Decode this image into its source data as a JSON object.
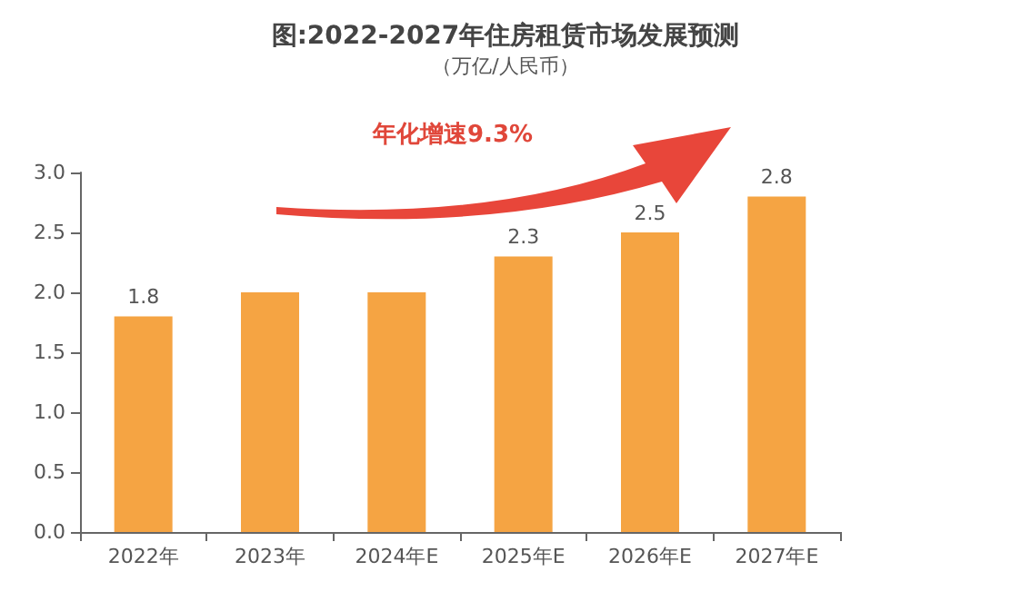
{
  "chart_data": {
    "type": "bar",
    "title": "图:2022-2027年住房租赁市场发展预测",
    "subtitle": "（万亿/人民币）",
    "annotations": [
      "年化增速9.3%"
    ],
    "categories": [
      "2022年",
      "2023年",
      "2024年E",
      "2025年E",
      "2026年E",
      "2027年E"
    ],
    "values": [
      1.8,
      2.0,
      2.0,
      2.3,
      2.5,
      2.8
    ],
    "value_labels": [
      "1.8",
      null,
      null,
      "2.3",
      "2.5",
      "2.8"
    ],
    "color": "#f5a443",
    "ylim": [
      0,
      3
    ],
    "yticks": [
      "0.0",
      "0.5",
      "1.0",
      "1.5",
      "2.0",
      "2.5",
      "3.0"
    ],
    "grid": false
  }
}
